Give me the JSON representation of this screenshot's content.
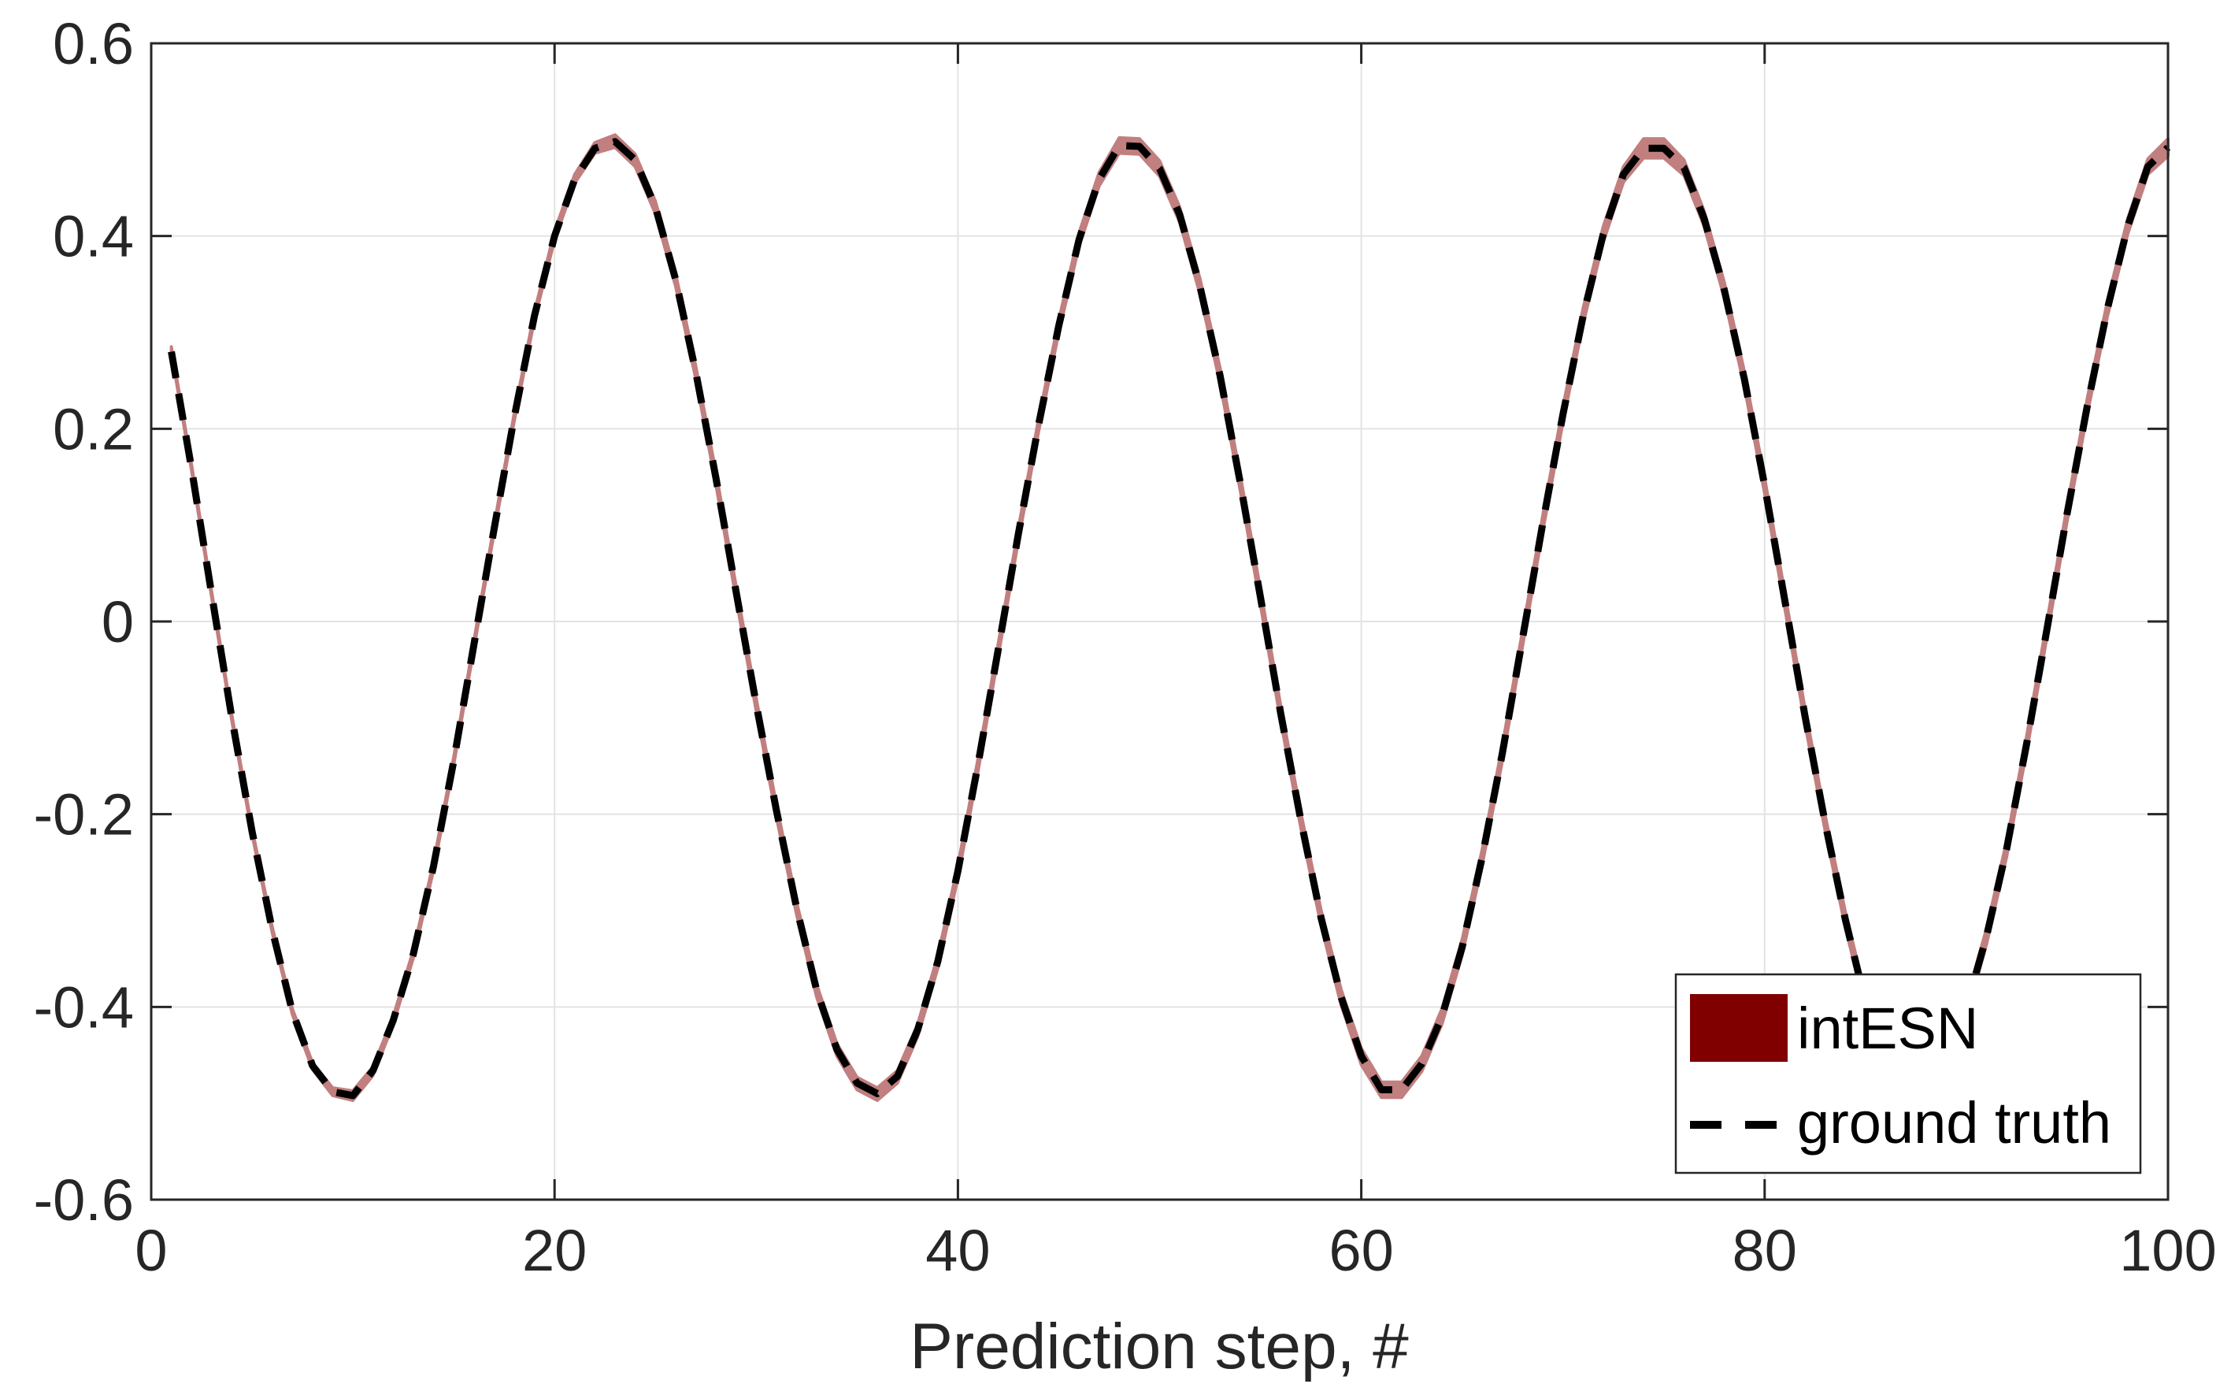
{
  "chart_data": {
    "type": "line",
    "title": "",
    "xlabel": "Prediction step, #",
    "ylabel": "",
    "xlim": [
      0,
      100
    ],
    "ylim": [
      -0.6,
      0.6
    ],
    "x_ticks": [
      "0",
      "20",
      "40",
      "60",
      "80",
      "100"
    ],
    "y_ticks": [
      "0.6",
      "0.4",
      "0.2",
      "0",
      "-0.2",
      "-0.4",
      "-0.6"
    ],
    "grid": true,
    "legend_position": "bottom-right",
    "x": [
      1,
      2,
      3,
      4,
      5,
      6,
      7,
      8,
      9,
      10,
      11,
      12,
      13,
      14,
      15,
      16,
      17,
      18,
      19,
      20,
      21,
      22,
      23,
      24,
      25,
      26,
      27,
      28,
      29,
      30,
      31,
      32,
      33,
      34,
      35,
      36,
      37,
      38,
      39,
      40,
      41,
      42,
      43,
      44,
      45,
      46,
      47,
      48,
      49,
      50,
      51,
      52,
      53,
      54,
      55,
      56,
      57,
      58,
      59,
      60,
      61,
      62,
      63,
      64,
      65,
      66,
      67,
      68,
      69,
      70,
      71,
      72,
      73,
      74,
      75,
      76,
      77,
      78,
      79,
      80,
      81,
      82,
      83,
      84,
      85,
      86,
      87,
      88,
      89,
      90,
      91,
      92,
      93,
      94,
      95,
      96,
      97,
      98,
      99,
      100
    ],
    "series": [
      {
        "name": "intESN",
        "kind": "band",
        "color": "#800000",
        "fill_color": "#c17f7f",
        "lower": [
          0.279,
          0.157,
          0.025,
          -0.103,
          -0.221,
          -0.323,
          -0.408,
          -0.465,
          -0.492,
          -0.497,
          -0.471,
          -0.418,
          -0.349,
          -0.258,
          -0.149,
          -0.028,
          0.092,
          0.208,
          0.313,
          0.396,
          0.455,
          0.486,
          0.492,
          0.472,
          0.423,
          0.348,
          0.252,
          0.142,
          0.024,
          -0.093,
          -0.203,
          -0.304,
          -0.39,
          -0.451,
          -0.486,
          -0.497,
          -0.479,
          -0.431,
          -0.36,
          -0.266,
          -0.155,
          -0.036,
          0.084,
          0.197,
          0.3,
          0.389,
          0.452,
          0.486,
          0.485,
          0.462,
          0.414,
          0.34,
          0.247,
          0.136,
          0.017,
          -0.103,
          -0.214,
          -0.315,
          -0.398,
          -0.46,
          -0.494,
          -0.494,
          -0.467,
          -0.418,
          -0.346,
          -0.252,
          -0.144,
          -0.025,
          0.094,
          0.207,
          0.309,
          0.394,
          0.456,
          0.481,
          0.481,
          0.463,
          0.41,
          0.336,
          0.243,
          0.133,
          0.014,
          -0.106,
          -0.217,
          -0.317,
          -0.403,
          -0.463,
          -0.497,
          -0.497,
          -0.468,
          -0.409,
          -0.335,
          -0.244,
          -0.134,
          -0.016,
          0.104,
          0.216,
          0.317,
          0.402,
          0.464,
          0.483
        ],
        "upper": [
          0.282,
          0.161,
          0.03,
          -0.098,
          -0.216,
          -0.318,
          -0.402,
          -0.458,
          -0.484,
          -0.487,
          -0.462,
          -0.41,
          -0.341,
          -0.25,
          -0.141,
          -0.02,
          0.1,
          0.216,
          0.321,
          0.405,
          0.464,
          0.497,
          0.505,
          0.485,
          0.436,
          0.361,
          0.265,
          0.155,
          0.037,
          -0.08,
          -0.19,
          -0.291,
          -0.377,
          -0.438,
          -0.473,
          -0.484,
          -0.466,
          -0.418,
          -0.347,
          -0.253,
          -0.142,
          -0.023,
          0.097,
          0.21,
          0.313,
          0.403,
          0.466,
          0.502,
          0.501,
          0.478,
          0.43,
          0.356,
          0.263,
          0.152,
          0.033,
          -0.087,
          -0.198,
          -0.299,
          -0.382,
          -0.443,
          -0.478,
          -0.478,
          -0.451,
          -0.402,
          -0.33,
          -0.236,
          -0.128,
          -0.009,
          0.11,
          0.223,
          0.325,
          0.41,
          0.472,
          0.501,
          0.501,
          0.479,
          0.426,
          0.352,
          0.259,
          0.149,
          0.03,
          -0.09,
          -0.201,
          -0.301,
          -0.387,
          -0.447,
          -0.481,
          -0.481,
          -0.452,
          -0.393,
          -0.319,
          -0.228,
          -0.118,
          0.0,
          0.12,
          0.232,
          0.333,
          0.418,
          0.48,
          0.501
        ]
      },
      {
        "name": "ground truth",
        "kind": "line",
        "color": "#000000",
        "dash": "dashed",
        "values": [
          0.28,
          0.159,
          0.028,
          -0.1,
          -0.218,
          -0.32,
          -0.405,
          -0.461,
          -0.488,
          -0.492,
          -0.466,
          -0.414,
          -0.345,
          -0.254,
          -0.145,
          -0.024,
          0.096,
          0.212,
          0.317,
          0.4,
          0.459,
          0.491,
          0.498,
          0.479,
          0.43,
          0.355,
          0.259,
          0.149,
          0.031,
          -0.086,
          -0.196,
          -0.297,
          -0.383,
          -0.444,
          -0.479,
          -0.49,
          -0.472,
          -0.424,
          -0.353,
          -0.259,
          -0.148,
          -0.029,
          0.091,
          0.204,
          0.307,
          0.396,
          0.459,
          0.494,
          0.493,
          0.47,
          0.422,
          0.348,
          0.255,
          0.144,
          0.025,
          -0.095,
          -0.206,
          -0.307,
          -0.39,
          -0.451,
          -0.486,
          -0.486,
          -0.459,
          -0.41,
          -0.338,
          -0.244,
          -0.136,
          -0.017,
          0.102,
          0.215,
          0.317,
          0.402,
          0.464,
          0.491,
          0.491,
          0.471,
          0.418,
          0.344,
          0.251,
          0.141,
          0.022,
          -0.098,
          -0.209,
          -0.309,
          -0.395,
          -0.455,
          -0.489,
          -0.489,
          -0.46,
          -0.401,
          -0.327,
          -0.236,
          -0.126,
          -0.008,
          0.112,
          0.224,
          0.325,
          0.41,
          0.472,
          0.492
        ]
      }
    ]
  }
}
